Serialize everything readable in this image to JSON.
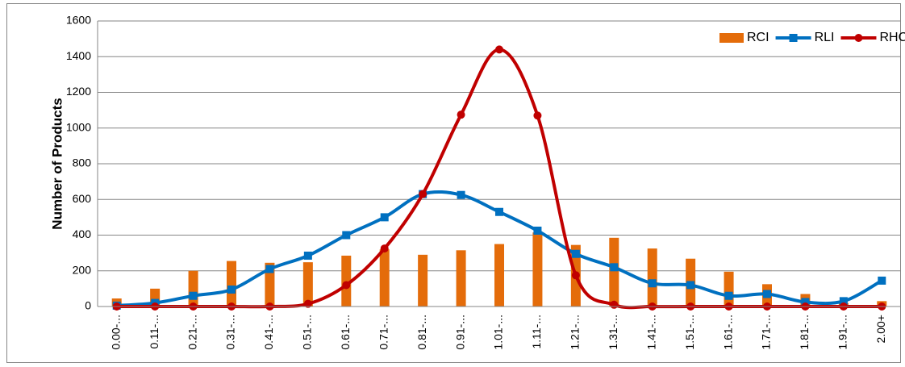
{
  "chart_data": {
    "type": "combo",
    "y_label": "Number of Products",
    "categories": [
      "0.00-...",
      "0.11-...",
      "0.21-...",
      "0.31-...",
      "0.41-...",
      "0.51-...",
      "0.61-...",
      "0.71-...",
      "0.81-...",
      "0.91-...",
      "1.01-...",
      "1.11-...",
      "1.21-...",
      "1.31-...",
      "1.41-...",
      "1.51-...",
      "1.61-...",
      "1.71-...",
      "1.81-...",
      "1.91-...",
      "2.00+"
    ],
    "series": [
      {
        "name": "RCI",
        "type": "bar",
        "color": "#e46c0a",
        "values": [
          45,
          100,
          200,
          255,
          245,
          248,
          285,
          320,
          290,
          315,
          350,
          415,
          345,
          385,
          325,
          268,
          195,
          125,
          70,
          20,
          30
        ]
      },
      {
        "name": "RLI",
        "type": "line",
        "marker": "square",
        "color": "#0070c0",
        "values": [
          5,
          20,
          60,
          95,
          210,
          285,
          400,
          500,
          630,
          625,
          530,
          425,
          295,
          220,
          130,
          120,
          60,
          70,
          25,
          30,
          145
        ]
      },
      {
        "name": "RHCI",
        "type": "line",
        "marker": "circle",
        "color": "#c00000",
        "values": [
          0,
          0,
          0,
          0,
          0,
          15,
          120,
          325,
          630,
          1075,
          1440,
          1070,
          175,
          10,
          0,
          0,
          0,
          0,
          0,
          0,
          0
        ]
      }
    ],
    "ylim": [
      0,
      1600
    ],
    "yticks": [
      0,
      200,
      400,
      600,
      800,
      1000,
      1200,
      1400,
      1600
    ],
    "grid": true,
    "legend": "top-right"
  }
}
